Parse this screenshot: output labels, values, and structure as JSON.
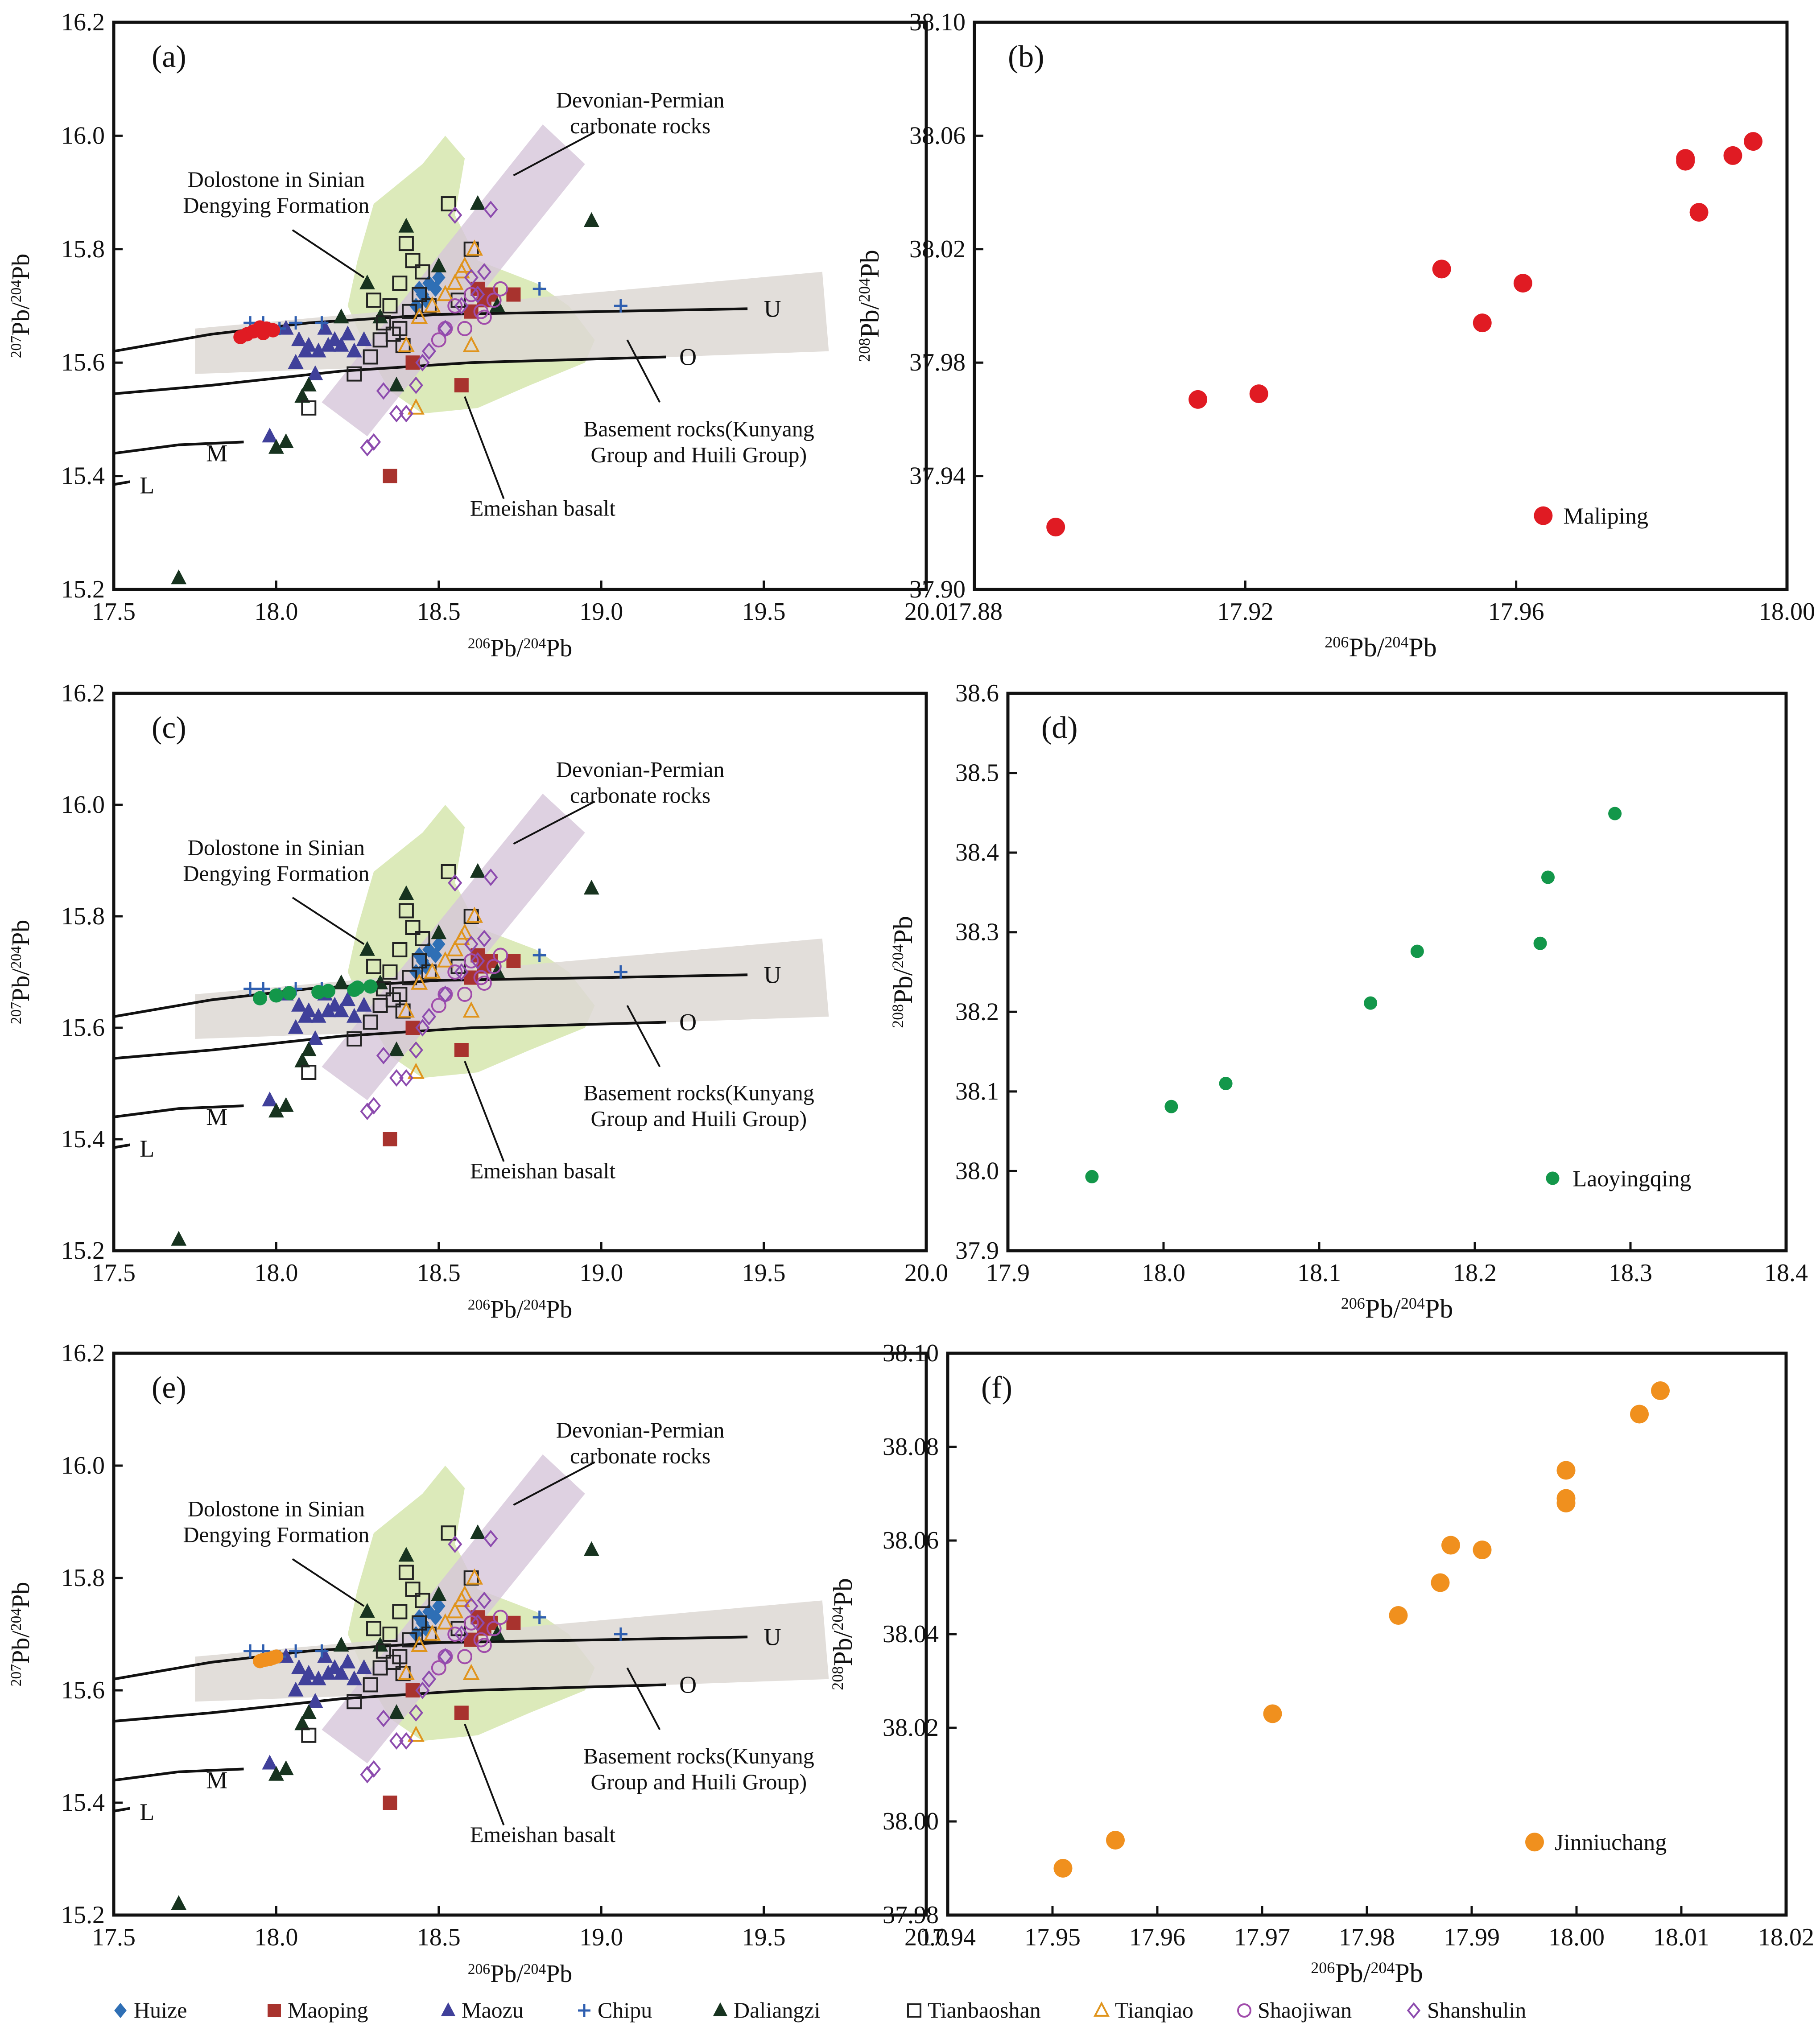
{
  "legend": {
    "entries": [
      {
        "name": "Huize",
        "marker": "diamond",
        "color": "#2f6fb5",
        "fill": true
      },
      {
        "name": "Maoping",
        "marker": "square",
        "color": "#a8332e",
        "fill": true
      },
      {
        "name": "Maozu",
        "marker": "triangle",
        "color": "#40409a",
        "fill": true
      },
      {
        "name": "Chipu",
        "marker": "plus",
        "color": "#2f5fb0",
        "fill": true
      },
      {
        "name": "Daliangzi",
        "marker": "triangle",
        "color": "#17331f",
        "fill": true
      },
      {
        "name": "Tianbaoshan",
        "marker": "square",
        "color": "#222222",
        "fill": false
      },
      {
        "name": "Tianqiao",
        "marker": "triangle",
        "color": "#e0941c",
        "fill": false
      },
      {
        "name": "Shaojiwan",
        "marker": "circle",
        "color": "#a04cab",
        "fill": false
      },
      {
        "name": "Shanshulin",
        "marker": "diamond",
        "color": "#8c4bae",
        "fill": false
      }
    ]
  },
  "common": {
    "axes": {
      "xlabel": "206Pb/204Pb",
      "ylabel_left": "207Pb/204Pb",
      "ylabel_right": "208Pb/204Pb"
    },
    "annotations": {
      "devonian": [
        "Devonian-Permian",
        "carbonate rocks"
      ],
      "dolostone": [
        "Dolostone in Sinian",
        "Dengying Formation"
      ],
      "basement": [
        "Basement rocks(Kunyang",
        "Group and Huili Group)"
      ],
      "emeishan": "Emeishan  basalt",
      "curves": {
        "U": "U",
        "O": "O",
        "M": "M",
        "L": "L"
      }
    },
    "colors": {
      "green_field": "#d6e6ae",
      "purple_field": "#d6c5d9",
      "gray_field": "#ddd8d4",
      "curve": "#111111"
    }
  },
  "chart_data": [
    {
      "panel": "(a)",
      "type": "scatter",
      "xlabel": "206Pb/204Pb",
      "ylabel": "207Pb/204Pb",
      "xlim": [
        17.5,
        20.0
      ],
      "ylim": [
        15.2,
        16.2
      ],
      "xticks": [
        "17.5",
        "18.0",
        "18.5",
        "19.0",
        "19.5",
        "20.0"
      ],
      "yticks": [
        "15.2",
        "15.4",
        "15.6",
        "15.8",
        "16.0",
        "16.2"
      ],
      "highlight": {
        "name": "Maliping",
        "color": "#e01b23",
        "points": [
          [
            17.89,
            15.645
          ],
          [
            17.91,
            15.65
          ],
          [
            17.93,
            15.655
          ],
          [
            17.95,
            15.662
          ],
          [
            17.97,
            15.66
          ],
          [
            17.99,
            15.657
          ],
          [
            17.96,
            15.652
          ]
        ]
      }
    },
    {
      "panel": "(b)",
      "type": "scatter",
      "xlabel": "206Pb/204Pb",
      "ylabel": "208Pb/204Pb",
      "xlim": [
        17.88,
        18.0
      ],
      "ylim": [
        37.9,
        38.1
      ],
      "xticks": [
        "17.88",
        "17.92",
        "17.96",
        "18.00"
      ],
      "yticks": [
        "37.90",
        "37.94",
        "37.98",
        "38.02",
        "38.06",
        "38.10"
      ],
      "series": [
        {
          "name": "Maliping",
          "color": "#e01b23",
          "points": [
            [
              17.892,
              37.922
            ],
            [
              17.913,
              37.967
            ],
            [
              17.922,
              37.969
            ],
            [
              17.949,
              38.013
            ],
            [
              17.955,
              37.994
            ],
            [
              17.961,
              38.008
            ],
            [
              17.985,
              38.052
            ],
            [
              17.985,
              38.051
            ],
            [
              17.987,
              38.033
            ],
            [
              17.992,
              38.053
            ],
            [
              17.995,
              38.058
            ]
          ]
        }
      ],
      "legend_label": "Maliping"
    },
    {
      "panel": "(c)",
      "type": "scatter",
      "xlabel": "206Pb/204Pb",
      "ylabel": "207Pb/204Pb",
      "xlim": [
        17.5,
        20.0
      ],
      "ylim": [
        15.2,
        16.2
      ],
      "xticks": [
        "17.5",
        "18.0",
        "18.5",
        "19.0",
        "19.5",
        "20.0"
      ],
      "yticks": [
        "15.2",
        "15.4",
        "15.6",
        "15.8",
        "16.0",
        "16.2"
      ],
      "highlight": {
        "name": "Laoyingqing",
        "color": "#13974a",
        "points": [
          [
            17.95,
            15.653
          ],
          [
            18.0,
            15.658
          ],
          [
            18.04,
            15.662
          ],
          [
            18.13,
            15.664
          ],
          [
            18.16,
            15.666
          ],
          [
            18.24,
            15.668
          ],
          [
            18.25,
            15.672
          ],
          [
            18.29,
            15.674
          ]
        ]
      }
    },
    {
      "panel": "(d)",
      "type": "scatter",
      "xlabel": "206Pb/204Pb",
      "ylabel": "208Pb/204Pb",
      "xlim": [
        17.9,
        18.4
      ],
      "ylim": [
        37.9,
        38.6
      ],
      "xticks": [
        "17.9",
        "18.0",
        "18.1",
        "18.2",
        "18.3",
        "18.4"
      ],
      "yticks": [
        "37.9",
        "38.0",
        "38.1",
        "38.2",
        "38.3",
        "38.4",
        "38.5",
        "38.6"
      ],
      "series": [
        {
          "name": "Laoyingqing",
          "color": "#13974a",
          "points": [
            [
              17.954,
              37.993
            ],
            [
              18.005,
              38.081
            ],
            [
              18.04,
              38.11
            ],
            [
              18.133,
              38.211
            ],
            [
              18.163,
              38.276
            ],
            [
              18.242,
              38.286
            ],
            [
              18.247,
              38.369
            ],
            [
              18.29,
              38.449
            ]
          ]
        }
      ],
      "legend_label": "Laoyingqing"
    },
    {
      "panel": "(e)",
      "type": "scatter",
      "xlabel": "206Pb/204Pb",
      "ylabel": "207Pb/204Pb",
      "xlim": [
        17.5,
        20.0
      ],
      "ylim": [
        15.2,
        16.2
      ],
      "xticks": [
        "17.5",
        "18.0",
        "18.5",
        "19.0",
        "19.5",
        "20.0"
      ],
      "yticks": [
        "15.2",
        "15.4",
        "15.6",
        "15.8",
        "16.0",
        "16.2"
      ],
      "highlight": {
        "name": "Jinniuchang",
        "color": "#f0901e",
        "points": [
          [
            17.95,
            15.652
          ],
          [
            17.96,
            15.654
          ],
          [
            17.97,
            15.655
          ],
          [
            17.98,
            15.656
          ],
          [
            17.99,
            15.658
          ],
          [
            18.0,
            15.66
          ]
        ]
      }
    },
    {
      "panel": "(f)",
      "type": "scatter",
      "xlabel": "206Pb/204Pb",
      "ylabel": "208Pb/204Pb",
      "xlim": [
        17.94,
        18.02
      ],
      "ylim": [
        37.98,
        38.1
      ],
      "xticks": [
        "17.94",
        "17.95",
        "17.96",
        "17.97",
        "17.98",
        "17.99",
        "18.00",
        "18.01",
        "18.02"
      ],
      "yticks": [
        "37.98",
        "38.00",
        "38.02",
        "38.04",
        "38.06",
        "38.08",
        "38.10"
      ],
      "series": [
        {
          "name": "Jinniuchang",
          "color": "#f0901e",
          "points": [
            [
              17.951,
              37.99
            ],
            [
              17.956,
              37.996
            ],
            [
              17.971,
              38.023
            ],
            [
              17.983,
              38.044
            ],
            [
              17.987,
              38.051
            ],
            [
              17.988,
              38.059
            ],
            [
              17.991,
              38.058
            ],
            [
              17.999,
              38.068
            ],
            [
              17.999,
              38.069
            ],
            [
              17.999,
              38.075
            ],
            [
              18.006,
              38.087
            ],
            [
              18.008,
              38.092
            ]
          ]
        }
      ],
      "legend_label": "Jinniuchang"
    }
  ]
}
